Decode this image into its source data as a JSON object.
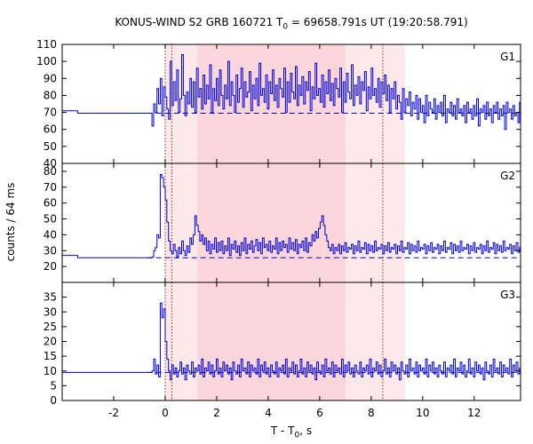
{
  "title_parts": [
    "KONUS-WIND S2 GRB 160721 T",
    "0",
    " = 69658.791s UT (19:20:58.791)"
  ],
  "xlabel_parts": [
    "T - T",
    "0",
    ", s"
  ],
  "ylabel": "counts / 64 ms",
  "chart_data": {
    "type": "line",
    "xlim": [
      -4,
      13.8
    ],
    "x_ticks": [
      -2,
      0,
      2,
      4,
      6,
      8,
      10,
      12
    ],
    "x_tick_labels": [
      "-2",
      "0",
      "2",
      "4",
      "6",
      "8",
      "10",
      "12"
    ],
    "shaded_regions": [
      {
        "x0": 0,
        "x1": 9.3,
        "color": "#fde8ea"
      },
      {
        "x0": 1.25,
        "x1": 7.0,
        "color": "#fbd7db"
      }
    ],
    "vertical_markers": [
      0,
      0.256,
      8.45
    ],
    "panels": [
      {
        "name": "G1",
        "ylim": [
          40,
          110
        ],
        "y_ticks": [
          40,
          50,
          60,
          70,
          80,
          90,
          100,
          110
        ],
        "background_level": 69.5,
        "background_until": -0.7,
        "pre_steps": [
          {
            "x": -4.0,
            "y": 71
          },
          {
            "x": -3.4,
            "y": 69.5
          }
        ],
        "t_start": -0.512,
        "dt": 0.064,
        "counts": [
          62,
          75,
          70,
          84,
          75,
          90,
          68,
          85,
          79,
          72,
          66,
          100,
          74,
          88,
          77,
          95,
          70,
          78,
          104,
          80,
          68,
          82,
          75,
          90,
          73,
          88,
          70,
          96,
          79,
          84,
          72,
          92,
          75,
          86,
          78,
          98,
          70,
          84,
          77,
          90,
          74,
          95,
          80,
          72,
          86,
          78,
          100,
          74,
          88,
          80,
          70,
          92,
          76,
          84,
          96,
          73,
          88,
          79,
          82,
          94,
          71,
          86,
          78,
          90,
          74,
          99,
          80,
          84,
          76,
          92,
          72,
          88,
          81,
          95,
          77,
          86,
          73,
          90,
          84,
          79,
          96,
          70,
          88,
          76,
          93,
          82,
          78,
          97,
          74,
          86,
          80,
          91,
          75,
          88,
          83,
          94,
          71,
          85,
          78,
          99,
          80,
          84,
          76,
          92,
          73,
          88,
          81,
          95,
          77,
          87,
          74,
          90,
          84,
          79,
          96,
          70,
          88,
          76,
          93,
          82,
          78,
          98,
          74,
          86,
          80,
          91,
          75,
          88,
          83,
          94,
          71,
          85,
          78,
          96,
          80,
          84,
          76,
          90,
          73,
          88,
          81,
          92,
          77,
          86,
          70,
          84,
          78,
          88,
          72,
          80,
          76,
          66,
          84,
          70,
          78,
          74,
          82,
          68,
          76,
          72,
          80,
          66,
          78,
          70,
          74,
          64,
          80,
          68,
          76,
          72,
          70,
          78,
          66,
          74,
          70,
          76,
          68,
          80,
          64,
          72,
          70,
          76,
          68,
          74,
          66,
          78,
          70,
          72,
          68,
          74,
          64,
          76,
          70,
          72,
          66,
          74,
          68,
          78,
          62,
          72,
          70,
          74,
          66,
          76,
          68,
          72,
          64,
          74,
          70,
          76,
          66,
          72,
          68,
          74,
          60,
          76,
          70,
          72,
          66,
          74,
          68,
          70,
          64,
          76,
          62,
          72,
          68,
          74,
          66,
          78,
          70,
          72,
          64,
          76,
          68,
          70
        ],
        "color": "#0000cc"
      },
      {
        "name": "G2",
        "ylim": [
          10,
          85
        ],
        "y_ticks": [
          20,
          30,
          40,
          50,
          60,
          70,
          80
        ],
        "background_level": 25.5,
        "background_until": -0.7,
        "pre_steps": [
          {
            "x": -4.0,
            "y": 27
          },
          {
            "x": -3.4,
            "y": 25.5
          }
        ],
        "t_start": -0.512,
        "dt": 0.064,
        "counts": [
          26,
          30,
          32,
          40,
          38,
          78,
          76,
          70,
          62,
          48,
          36,
          30,
          28,
          34,
          30,
          26,
          32,
          28,
          36,
          30,
          27,
          33,
          29,
          38,
          34,
          40,
          52,
          46,
          42,
          36,
          40,
          34,
          38,
          30,
          36,
          28,
          34,
          31,
          38,
          29,
          35,
          30,
          36,
          28,
          33,
          30,
          38,
          27,
          34,
          31,
          36,
          29,
          33,
          27,
          35,
          30,
          38,
          28,
          34,
          31,
          36,
          29,
          33,
          37,
          30,
          35,
          28,
          38,
          32,
          34,
          30,
          36,
          29,
          33,
          31,
          38,
          28,
          35,
          30,
          36,
          32,
          34,
          29,
          38,
          31,
          35,
          30,
          37,
          28,
          34,
          32,
          36,
          30,
          38,
          29,
          35,
          33,
          40,
          36,
          42,
          38,
          44,
          48,
          52,
          46,
          40,
          36,
          32,
          30,
          34,
          28,
          32,
          30,
          34,
          28,
          33,
          30,
          35,
          29,
          32,
          31,
          34,
          28,
          33,
          30,
          36,
          29,
          32,
          31,
          35,
          28,
          34,
          30,
          33,
          29,
          36,
          30,
          32,
          31,
          34,
          28,
          33,
          30,
          35,
          29,
          32,
          31,
          34,
          28,
          33,
          30,
          36,
          29,
          32,
          31,
          35,
          28,
          34,
          30,
          33,
          29,
          36,
          30,
          32,
          31,
          34,
          28,
          33,
          30,
          35,
          29,
          32,
          31,
          34,
          28,
          33,
          30,
          36,
          29,
          32,
          31,
          35,
          28,
          34,
          30,
          33,
          29,
          36,
          30,
          32,
          31,
          34,
          28,
          33,
          30,
          35,
          29,
          32,
          31,
          34,
          28,
          33,
          30,
          36,
          29,
          32,
          31,
          35,
          28,
          34,
          30,
          33,
          29,
          36,
          30,
          32,
          31,
          34,
          28,
          33,
          30,
          35,
          29,
          32,
          31,
          34,
          28,
          33,
          30,
          36,
          29,
          32,
          31,
          35,
          28,
          34,
          30,
          33
        ],
        "color": "#0000cc"
      },
      {
        "name": "G3",
        "ylim": [
          0,
          40
        ],
        "y_ticks": [
          0,
          5,
          10,
          15,
          20,
          25,
          30,
          35
        ],
        "background_level": 9.5,
        "background_until": -0.7,
        "pre_steps": [
          {
            "x": -4.0,
            "y": 9.5
          },
          {
            "x": -3.4,
            "y": 9.5
          }
        ],
        "t_start": -0.512,
        "dt": 0.064,
        "counts": [
          10,
          14,
          9,
          12,
          8,
          33,
          28,
          31,
          20,
          14,
          10,
          7,
          12,
          9,
          11,
          8,
          10,
          13,
          9,
          11,
          7,
          12,
          10,
          9,
          13,
          8,
          11,
          10,
          12,
          9,
          14,
          8,
          11,
          10,
          13,
          9,
          12,
          8,
          10,
          14,
          9,
          11,
          8,
          13,
          10,
          12,
          9,
          11,
          7,
          13,
          10,
          9,
          12,
          8,
          14,
          10,
          11,
          9,
          13,
          8,
          12,
          10,
          11,
          9,
          14,
          8,
          12,
          10,
          13,
          9,
          11,
          8,
          12,
          10,
          9,
          13,
          8,
          11,
          10,
          12,
          9,
          14,
          8,
          11,
          10,
          13,
          9,
          12,
          8,
          10,
          14,
          9,
          11,
          8,
          13,
          10,
          12,
          9,
          11,
          7,
          13,
          10,
          9,
          12,
          8,
          14,
          10,
          11,
          9,
          13,
          8,
          12,
          10,
          11,
          9,
          14,
          8,
          12,
          10,
          13,
          9,
          11,
          8,
          12,
          10,
          9,
          13,
          8,
          11,
          10,
          12,
          9,
          14,
          8,
          11,
          10,
          13,
          9,
          12,
          8,
          10,
          14,
          9,
          11,
          8,
          13,
          10,
          12,
          9,
          11,
          7,
          13,
          10,
          9,
          12,
          8,
          14,
          10,
          11,
          9,
          13,
          8,
          12,
          10,
          11,
          9,
          14,
          8,
          12,
          10,
          13,
          9,
          11,
          8,
          12,
          10,
          9,
          13,
          8,
          11,
          10,
          12,
          9,
          14,
          8,
          11,
          10,
          13,
          9,
          12,
          8,
          10,
          14,
          9,
          11,
          8,
          13,
          10,
          12,
          9,
          11,
          7,
          13,
          10,
          9,
          12,
          8,
          14,
          10,
          11,
          9,
          13,
          8,
          12,
          10,
          11,
          9,
          14,
          8,
          12,
          10,
          13,
          9,
          11,
          8,
          12,
          10,
          9,
          13,
          8,
          11,
          10,
          12,
          9,
          14,
          8,
          11,
          10,
          13
        ],
        "color": "#0000cc"
      }
    ]
  }
}
